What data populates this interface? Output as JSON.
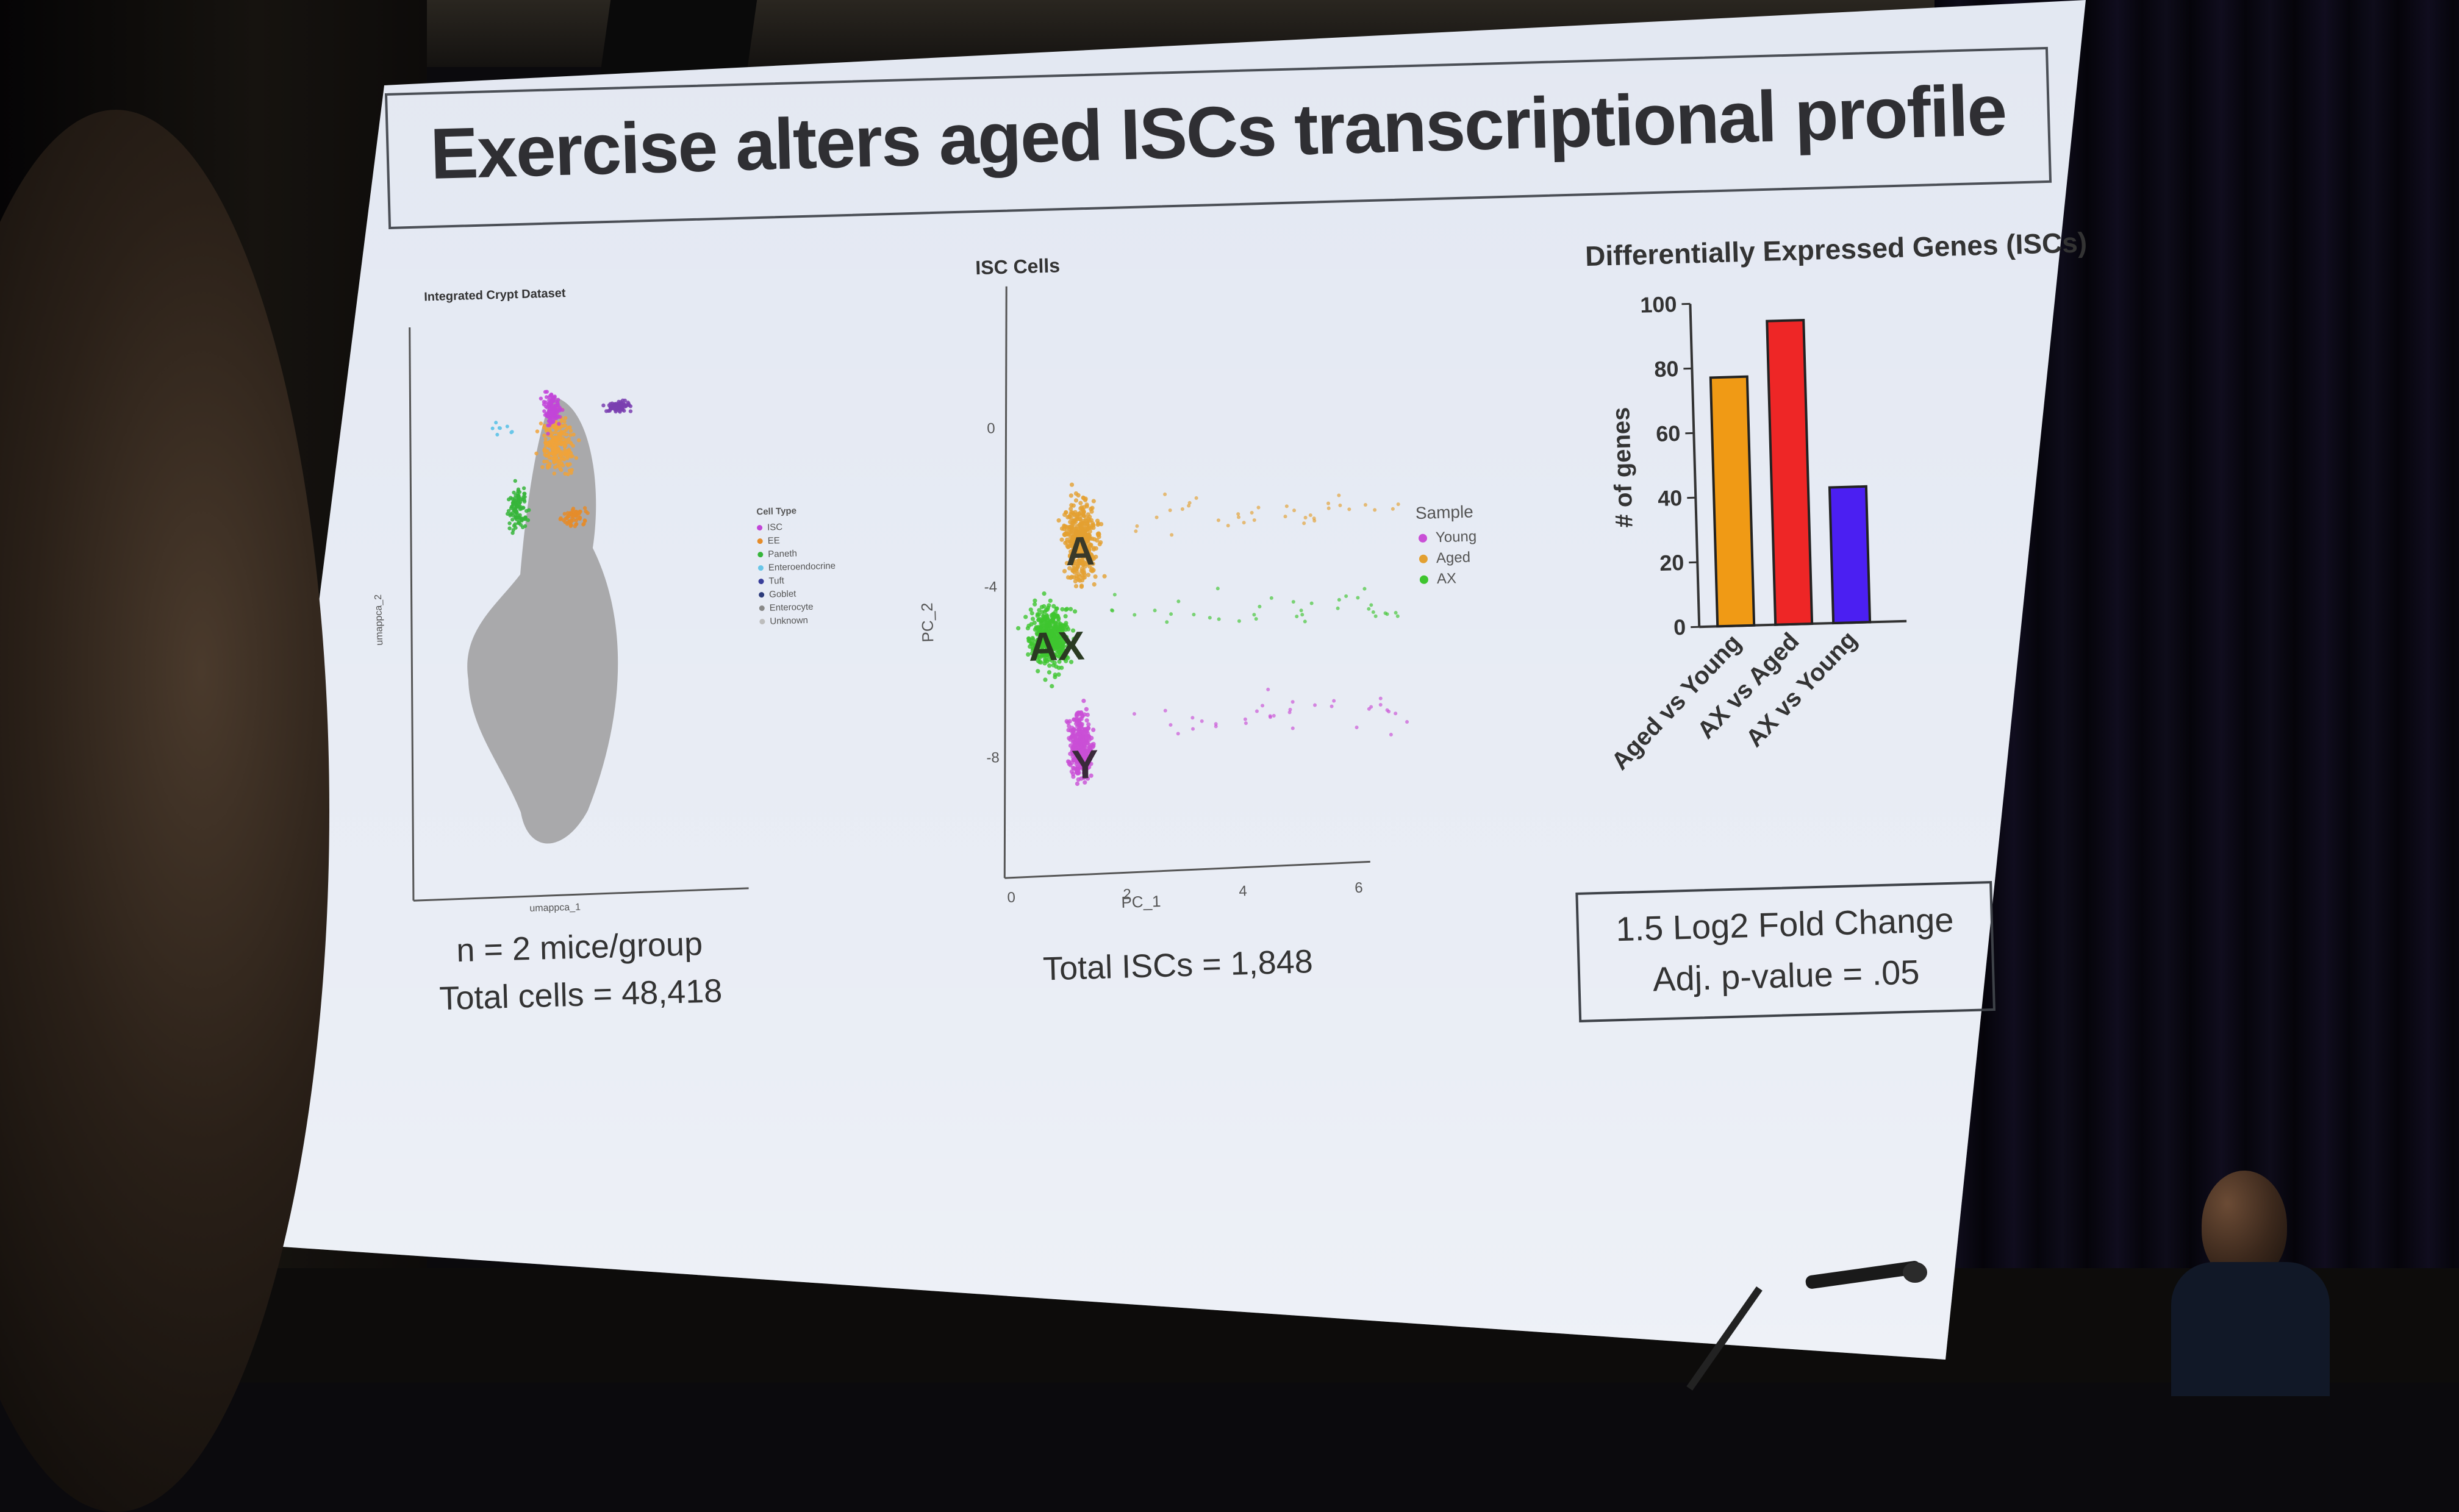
{
  "slide": {
    "title": "Exercise alters aged ISCs transcriptional profile"
  },
  "umap_panel": {
    "title": "Integrated Crypt Dataset",
    "xlabel": "umappca_1",
    "ylabel": "umappca_2",
    "legend_title": "Cell Type",
    "legend_items": [
      {
        "label": "ISC",
        "color": "#c245d8"
      },
      {
        "label": "EE",
        "color": "#e58c2a"
      },
      {
        "label": "Paneth",
        "color": "#36b53a"
      },
      {
        "label": "Enteroendocrine",
        "color": "#69c6e8"
      },
      {
        "label": "Tuft",
        "color": "#3a3f9a"
      },
      {
        "label": "Goblet",
        "color": "#2c3b7a"
      },
      {
        "label": "Enterocyte",
        "color": "#888888"
      },
      {
        "label": "Unknown",
        "color": "#bdbdbd"
      }
    ],
    "caption_line1": "n = 2 mice/group",
    "caption_line2": "Total cells = 48,418"
  },
  "pca_panel": {
    "title": "ISC Cells",
    "xlabel": "PC_1",
    "ylabel": "PC_2",
    "x_ticks": [
      "0",
      "2",
      "4",
      "6"
    ],
    "y_ticks": [
      "0",
      "-4",
      "-8"
    ],
    "legend_title": "Sample",
    "legend_items": [
      {
        "label": "Young",
        "color": "#c94fd6"
      },
      {
        "label": "Aged",
        "color": "#e3a031"
      },
      {
        "label": "AX",
        "color": "#3ec52f"
      }
    ],
    "cluster_labels": {
      "aged": "A",
      "ax": "AX",
      "young": "Y"
    },
    "caption": "Total ISCs = 1,848"
  },
  "chart_data": {
    "type": "bar",
    "title": "Differentially Expressed Genes (ISCs)",
    "categories": [
      "Aged vs Young",
      "AX vs Aged",
      "AX vs Young"
    ],
    "values": [
      77,
      94,
      42
    ],
    "colors": [
      "#f09a15",
      "#ee2626",
      "#4b1ff2"
    ],
    "ylabel": "# of genes",
    "xlabel": "",
    "ylim": [
      0,
      100
    ],
    "y_ticks": [
      0,
      20,
      40,
      60,
      80,
      100
    ],
    "grid": false
  },
  "parameters": {
    "line1": "1.5 Log2 Fold Change",
    "line2": "Adj. p-value = .05"
  }
}
